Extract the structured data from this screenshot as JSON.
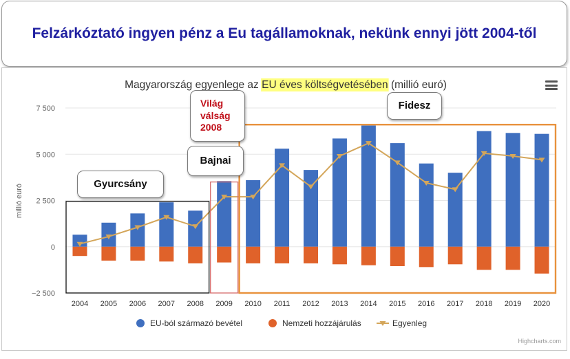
{
  "page": {
    "headline": "Felzárkóztató ingyen pénz a Eu tagállamoknak, nekünk ennyi jött 2004-től",
    "credit": "Highcharts.com",
    "menu_icon": "hamburger-menu-icon"
  },
  "colors": {
    "income": "#3f6fbf",
    "contribution": "#e0622a",
    "balance": "#d4a65a",
    "headline": "#1f1fa0",
    "highlight": "#ffff80",
    "box_gyurcsany": "#111111",
    "box_crisis": "#d66b6b",
    "box_fidesz": "#e8923c"
  },
  "annotations": {
    "gyurcsany": "Gyurcsány",
    "crisis": [
      "Világ",
      "válság",
      "2008"
    ],
    "bajnai": "Bajnai",
    "fidesz": "Fidesz"
  },
  "chart_data": {
    "type": "bar",
    "title_before": "Magyarország egyenlege az ",
    "title_highlight": "EU éves költségvetésében",
    "title_after": " (millió euró)",
    "ylabel": "millió euró",
    "ylim": [
      -2500,
      7500
    ],
    "y_ticks": [
      -2500,
      0,
      2500,
      5000,
      7500
    ],
    "y_tick_labels": [
      "−2 500",
      "0",
      "2 500",
      "5 000",
      "7 500"
    ],
    "grid": true,
    "legend_position": "bottom-center",
    "categories": [
      "2004",
      "2005",
      "2006",
      "2007",
      "2008",
      "2009",
      "2010",
      "2011",
      "2012",
      "2013",
      "2014",
      "2015",
      "2016",
      "2017",
      "2018",
      "2019",
      "2020"
    ],
    "series": [
      {
        "name": "EU-ból származó bevétel",
        "type": "bar",
        "values": [
          650,
          1300,
          1800,
          2400,
          1950,
          3550,
          3600,
          5300,
          4150,
          5850,
          6550,
          5600,
          4500,
          4000,
          6250,
          6150,
          6100
        ]
      },
      {
        "name": "Nemzeti hozzájárulás",
        "type": "bar",
        "values": [
          -500,
          -750,
          -750,
          -800,
          -900,
          -850,
          -900,
          -900,
          -900,
          -950,
          -1000,
          -1050,
          -1100,
          -950,
          -1250,
          -1250,
          -1450
        ]
      },
      {
        "name": "Egyenleg",
        "type": "line",
        "values": [
          150,
          550,
          1050,
          1600,
          1100,
          2700,
          2700,
          4400,
          3250,
          4900,
          5600,
          4550,
          3450,
          3100,
          5050,
          4900,
          4700
        ]
      }
    ]
  }
}
